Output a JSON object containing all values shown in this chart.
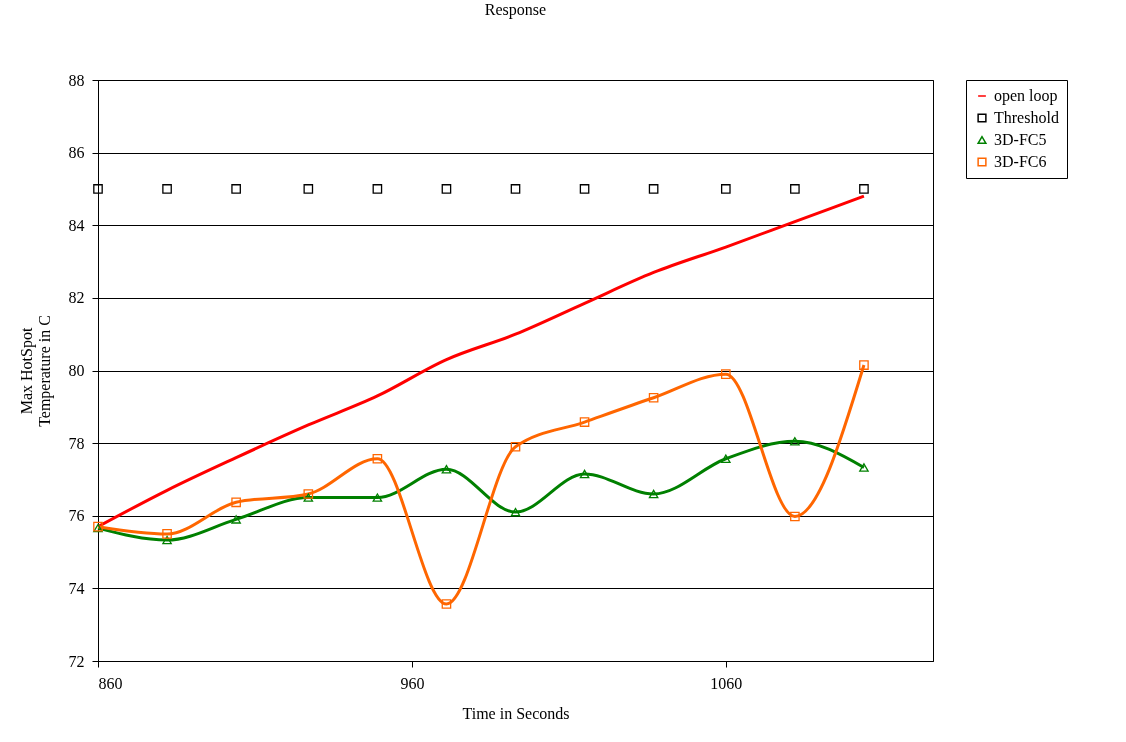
{
  "chart_data": {
    "type": "line",
    "title": "Response",
    "xlabel": "Time in Seconds",
    "ylabel": "Max HotSpot Temperature in C",
    "x": [
      860,
      882,
      904,
      927,
      949,
      971,
      993,
      1015,
      1037,
      1060,
      1082,
      1104
    ],
    "series": [
      {
        "name": "open loop",
        "color": "#ff0000",
        "marker": "none",
        "values": [
          75.7,
          76.7,
          77.6,
          78.5,
          79.3,
          80.3,
          81.0,
          81.85,
          82.7,
          83.4,
          84.1,
          84.8
        ]
      },
      {
        "name": "Threshold",
        "type": "scatter",
        "color": "#000000",
        "marker": "square",
        "values": [
          85,
          85,
          85,
          85,
          85,
          85,
          85,
          85,
          85,
          85,
          85,
          85
        ]
      },
      {
        "name": "3D-FC5",
        "color": "#008000",
        "marker": "triangle",
        "values": [
          75.66,
          75.33,
          75.9,
          76.5,
          76.5,
          77.28,
          76.1,
          77.15,
          76.6,
          77.57,
          78.05,
          77.33
        ]
      },
      {
        "name": "3D-FC6",
        "color": "#ff6600",
        "marker": "square",
        "values": [
          75.7,
          75.5,
          76.37,
          76.6,
          77.57,
          73.57,
          77.9,
          78.58,
          79.25,
          79.9,
          75.98,
          80.15
        ]
      }
    ],
    "xlim": [
      860,
      1126
    ],
    "xticks": [
      860,
      960,
      1060
    ],
    "ylim": [
      72,
      88
    ],
    "yticks": [
      72,
      74,
      76,
      78,
      80,
      82,
      84,
      86,
      88
    ],
    "grid": "y",
    "legend": "right"
  }
}
